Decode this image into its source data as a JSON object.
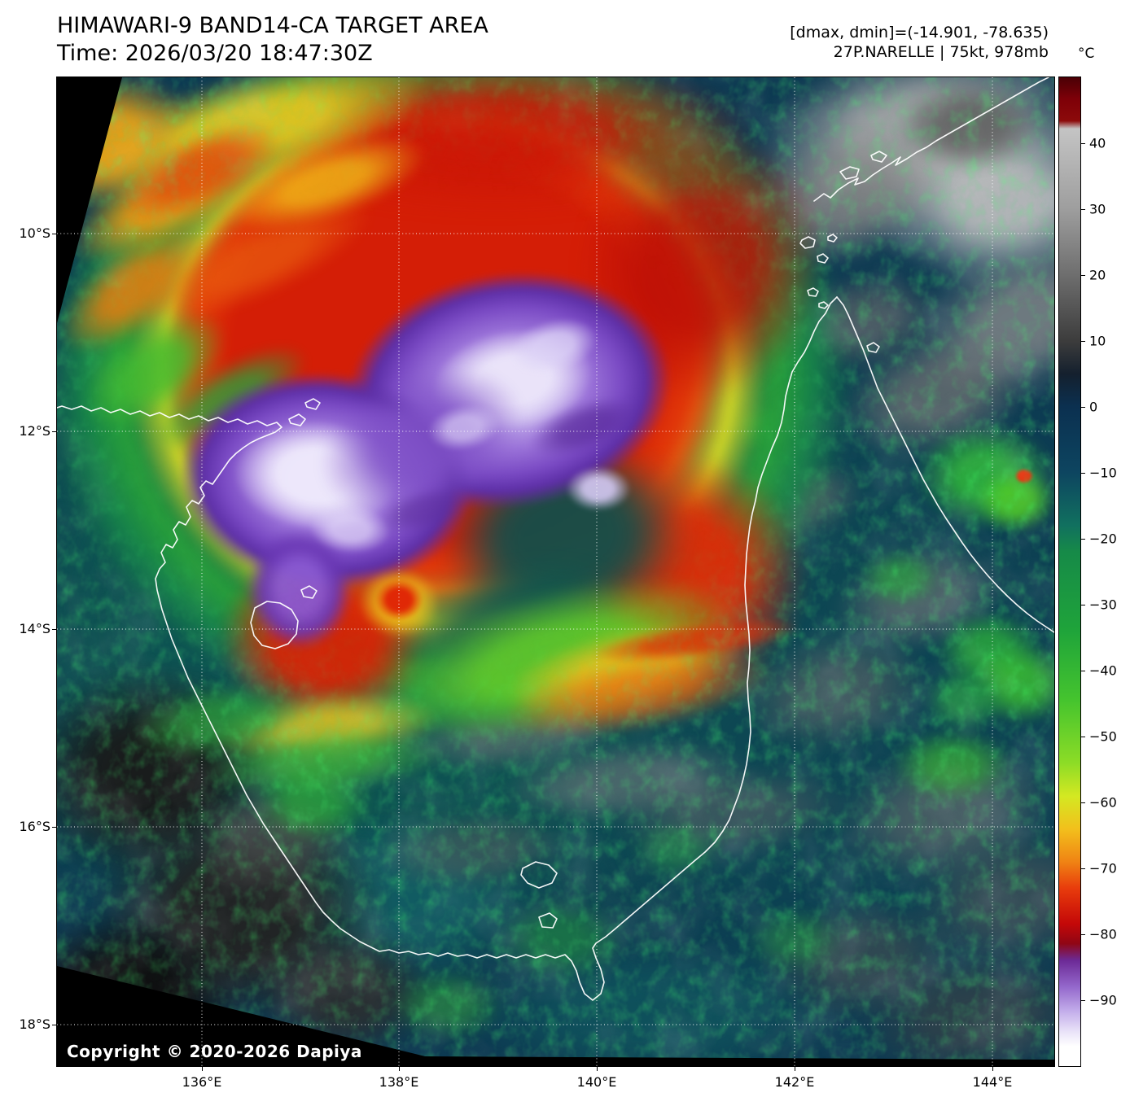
{
  "header": {
    "title": "HIMAWARI-9 BAND14-CA TARGET AREA",
    "time": "Time: 2026/03/20 18:47:30Z",
    "dmax_dmin": "[dmax, dmin]=(-14.901, -78.635)",
    "storm": "27P.NARELLE | 75kt, 978mb"
  },
  "colorbar": {
    "unit": "°C",
    "ticks": [
      "40",
      "30",
      "20",
      "10",
      "0",
      "−10",
      "−20",
      "−30",
      "−40",
      "−50",
      "−60",
      "−70",
      "−80",
      "−90"
    ]
  },
  "axes": {
    "lat": [
      "10°S",
      "12°S",
      "14°S",
      "16°S",
      "18°S"
    ],
    "lon": [
      "136°E",
      "138°E",
      "140°E",
      "142°E",
      "144°E"
    ]
  },
  "footer": {
    "copyright": "Copyright © 2020-2026 Dapiya"
  },
  "palette": {
    "ocean_background": "#0d3a52",
    "warm_maroon": "#8c0a0a",
    "storm_red": "#d41e06",
    "storm_orange": "#f28414",
    "storm_yellow": "#dde024",
    "storm_green": "#2aa438",
    "cold_purple": "#9d76da",
    "coldest_white": "#efeafc",
    "coastline": "#ffffff",
    "gridline": "#ffffff"
  }
}
